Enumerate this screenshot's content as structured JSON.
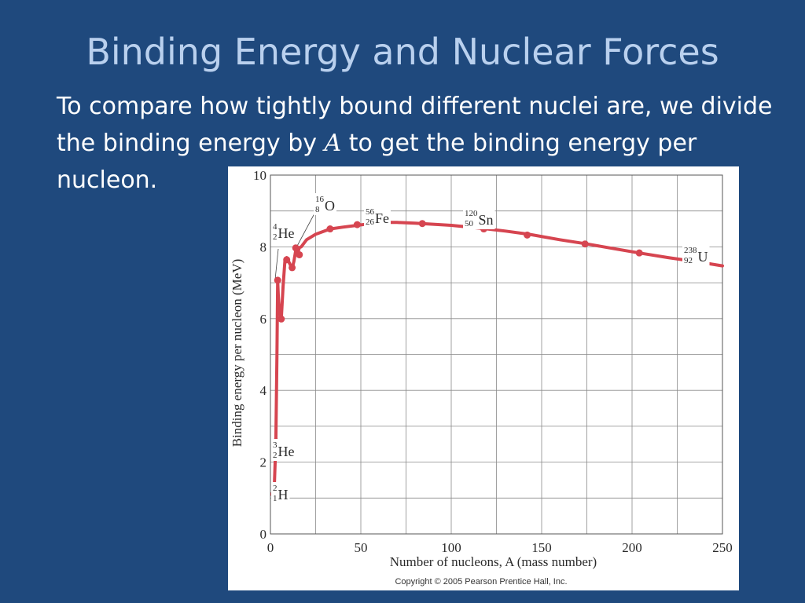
{
  "slide": {
    "title": "Binding Energy and Nuclear Forces",
    "body_before": "To compare how tightly bound different nuclei are, we divide the binding energy by ",
    "body_var": "A",
    "body_after": " to get the binding energy per nucleon."
  },
  "chart_data": {
    "type": "line",
    "title": "",
    "xlabel": "Number of nucleons, A (mass number)",
    "ylabel": "Binding energy per nucleon (MeV)",
    "xlim": [
      0,
      250
    ],
    "ylim": [
      0,
      10
    ],
    "xticks": [
      0,
      50,
      100,
      150,
      200,
      250
    ],
    "yticks": [
      0,
      2,
      4,
      6,
      8,
      10
    ],
    "grid": true,
    "line_color": "#d64550",
    "curve": {
      "x": [
        2,
        3,
        3.6,
        4,
        4.4,
        5,
        6,
        7,
        8,
        9,
        10,
        11,
        12,
        13,
        14,
        15,
        16,
        17,
        20,
        25,
        33,
        40,
        48,
        56,
        62,
        70,
        80,
        90,
        100,
        110,
        120,
        130,
        143,
        160,
        175,
        190,
        204,
        220,
        238,
        250
      ],
      "y": [
        1.11,
        2.57,
        5.0,
        7.07,
        6.6,
        6.2,
        5.99,
        6.9,
        7.6,
        7.7,
        7.6,
        7.5,
        7.4,
        7.6,
        7.9,
        7.8,
        7.98,
        8.0,
        8.2,
        8.35,
        8.5,
        8.55,
        8.6,
        8.65,
        8.68,
        8.68,
        8.66,
        8.63,
        8.6,
        8.55,
        8.5,
        8.44,
        8.35,
        8.2,
        8.08,
        7.95,
        7.83,
        7.7,
        7.57,
        7.47
      ]
    },
    "points": {
      "x": [
        2,
        3,
        4,
        6,
        9,
        12,
        14,
        16,
        33,
        48,
        56,
        84,
        118,
        142,
        174,
        204,
        238
      ],
      "y": [
        1.11,
        2.57,
        7.07,
        5.99,
        7.64,
        7.42,
        7.97,
        7.78,
        8.5,
        8.62,
        8.65,
        8.65,
        8.5,
        8.33,
        8.08,
        7.83,
        7.57
      ]
    },
    "nuclide_labels": [
      {
        "mass": "2",
        "atomic": "1",
        "symbol": "H"
      },
      {
        "mass": "3",
        "atomic": "2",
        "symbol": "He"
      },
      {
        "mass": "4",
        "atomic": "2",
        "symbol": "He"
      },
      {
        "mass": "16",
        "atomic": "8",
        "symbol": "O"
      },
      {
        "mass": "56",
        "atomic": "26",
        "symbol": "Fe"
      },
      {
        "mass": "120",
        "atomic": "50",
        "symbol": "Sn"
      },
      {
        "mass": "238",
        "atomic": "92",
        "symbol": "U"
      }
    ],
    "copyright": "Copyright © 2005 Pearson Prentice Hall, Inc."
  }
}
